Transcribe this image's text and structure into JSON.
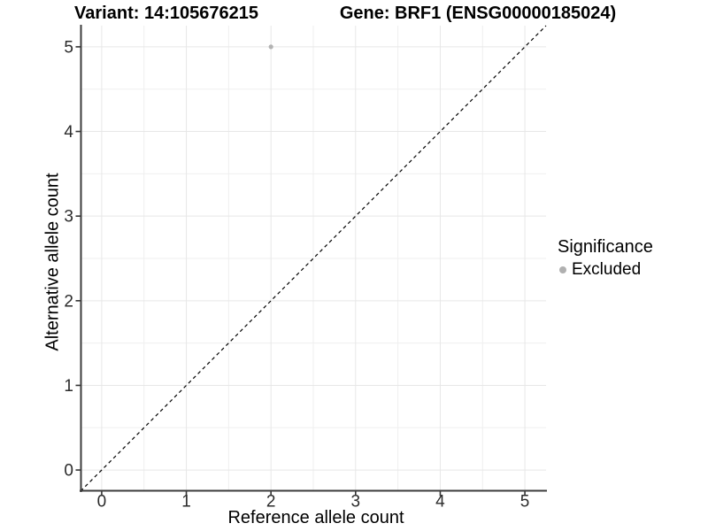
{
  "titles": {
    "left": "Variant: 14:105676215",
    "right": "Gene: BRF1 (ENSG00000185024)"
  },
  "axes": {
    "x": {
      "label": "Reference allele count"
    },
    "y": {
      "label": "Alternative allele count"
    }
  },
  "legend": {
    "title": "Significance",
    "entries": [
      {
        "label": "Excluded",
        "color": "#b0b0b0"
      }
    ]
  },
  "chart_data": {
    "type": "scatter",
    "title_left": "Variant: 14:105676215",
    "title_right": "Gene: BRF1 (ENSG00000185024)",
    "xlabel": "Reference allele count",
    "ylabel": "Alternative allele count",
    "xlim": [
      -0.25,
      5.25
    ],
    "ylim": [
      -0.25,
      5.25
    ],
    "x_ticks": [
      0,
      1,
      2,
      3,
      4,
      5
    ],
    "y_ticks": [
      0,
      1,
      2,
      3,
      4,
      5
    ],
    "x_minor_ticks": [
      0.5,
      1.5,
      2.5,
      3.5,
      4.5
    ],
    "y_minor_ticks": [
      0.5,
      1.5,
      2.5,
      3.5,
      4.5
    ],
    "grid": "on",
    "points": [
      {
        "x": 2,
        "y": 5,
        "series": "Excluded",
        "radius": 2.6
      }
    ],
    "reference_line": {
      "type": "identity",
      "x1": -0.25,
      "y1": -0.25,
      "x2": 5.25,
      "y2": 5.25,
      "style": "dashed",
      "dash": "4 3.5",
      "color": "#000000"
    },
    "legend_position": "right",
    "colors": {
      "point": "#b3b3b3",
      "grid_major": "#e7e7e7",
      "grid_minor": "#efefef",
      "axis_line": "#3c3c3c",
      "tick_mark": "#333333",
      "tick_label": "#2b2b2b",
      "background": "#ffffff"
    },
    "tick_font_size": 19,
    "legend_key_color": "#b0b0b0"
  }
}
